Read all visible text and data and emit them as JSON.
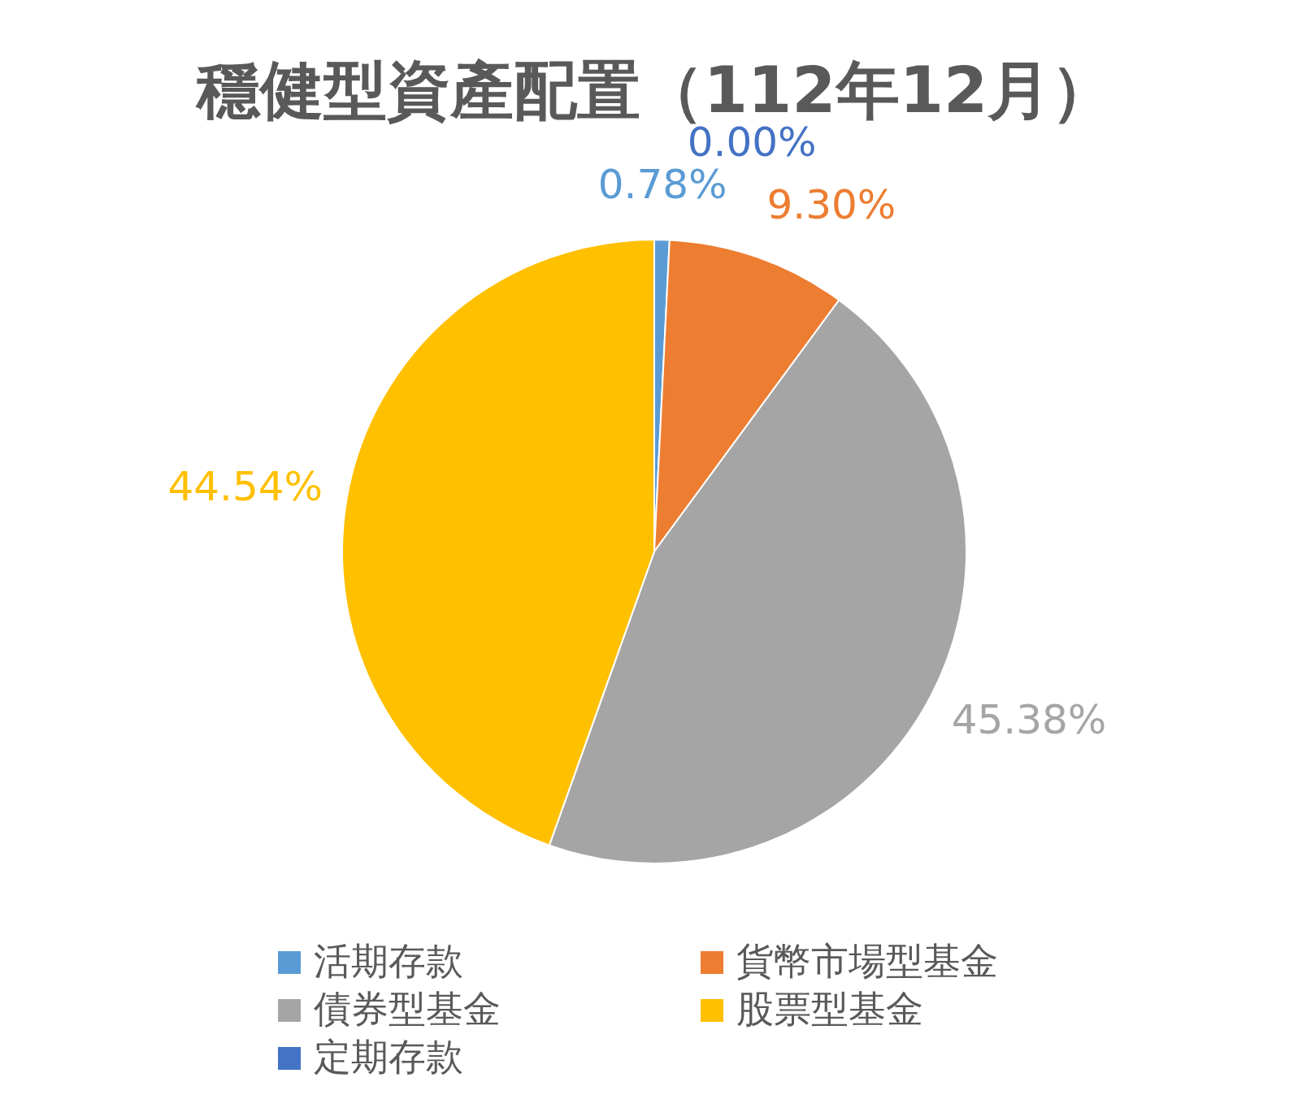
{
  "chart_data": {
    "type": "pie",
    "title": "穩健型資產配置（112年12月）",
    "categories": [
      "活期存款",
      "貨幣市場型基金",
      "債券型基金",
      "股票型基金",
      "定期存款"
    ],
    "values": [
      0.78,
      9.3,
      45.38,
      44.54,
      0.0
    ],
    "colors": [
      "#5b9bd5",
      "#ed7d31",
      "#a5a5a5",
      "#ffc000",
      "#4472c4"
    ],
    "value_labels": [
      "0.78%",
      "9.30%",
      "45.38%",
      "44.54%",
      "0.00%"
    ],
    "legend": "bottom"
  }
}
